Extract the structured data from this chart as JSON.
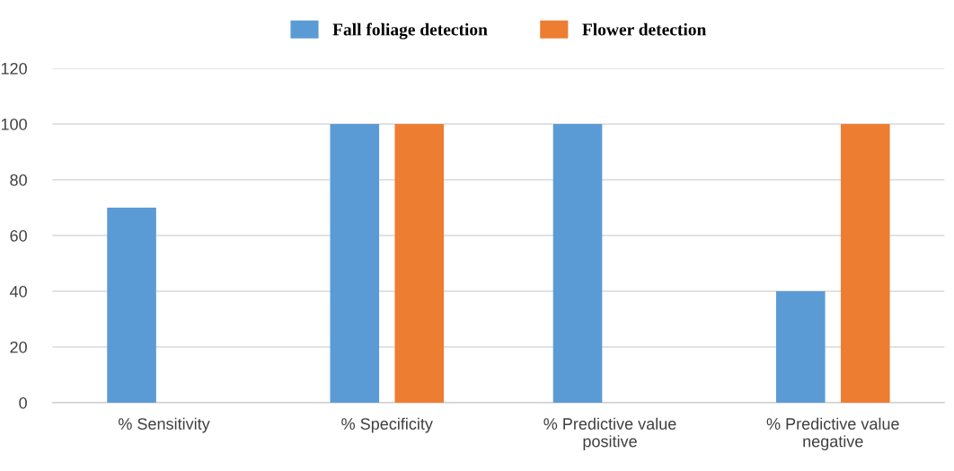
{
  "chart_data": {
    "type": "bar",
    "categories": [
      "% Sensitivity",
      "% Specificity",
      "% Predictive value\npositive",
      "% Predictive value\nnegative"
    ],
    "series": [
      {
        "name": "Fall foliage detection",
        "color": "#5b9bd5",
        "values": [
          70,
          100,
          100,
          40
        ]
      },
      {
        "name": "Flower detection",
        "color": "#ed7d31",
        "values": [
          0,
          100,
          0,
          100
        ]
      }
    ],
    "ylim": [
      0,
      120
    ],
    "yticks": [
      0,
      20,
      40,
      60,
      80,
      100,
      120
    ],
    "grid": "y",
    "legend": "top"
  }
}
